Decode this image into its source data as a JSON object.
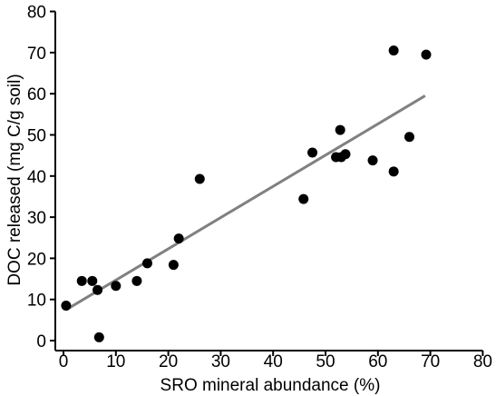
{
  "chart_data": {
    "type": "scatter",
    "xlabel": "SRO mineral abundance (%)",
    "ylabel": "DOC released (mg C/g soil)",
    "xlim": [
      -2,
      80
    ],
    "ylim": [
      -1,
      80
    ],
    "x_ticks": [
      0,
      10,
      20,
      30,
      40,
      50,
      60,
      70,
      80
    ],
    "y_ticks": [
      0,
      10,
      20,
      30,
      40,
      50,
      60,
      70,
      80
    ],
    "grid": false,
    "series": [
      {
        "points": [
          {
            "x": 0.5,
            "y": 8.5
          },
          {
            "x": 3.5,
            "y": 14.5
          },
          {
            "x": 5.5,
            "y": 14.5
          },
          {
            "x": 6.5,
            "y": 12.3
          },
          {
            "x": 6.8,
            "y": 0.8
          },
          {
            "x": 10.0,
            "y": 13.3
          },
          {
            "x": 14.0,
            "y": 14.5
          },
          {
            "x": 16.0,
            "y": 18.8
          },
          {
            "x": 21.0,
            "y": 18.4
          },
          {
            "x": 22.0,
            "y": 24.8
          },
          {
            "x": 26.0,
            "y": 39.3
          },
          {
            "x": 45.8,
            "y": 34.4
          },
          {
            "x": 47.5,
            "y": 45.7
          },
          {
            "x": 52.0,
            "y": 44.6
          },
          {
            "x": 52.8,
            "y": 51.2
          },
          {
            "x": 53.0,
            "y": 44.6
          },
          {
            "x": 53.8,
            "y": 45.3
          },
          {
            "x": 59.0,
            "y": 43.8
          },
          {
            "x": 63.0,
            "y": 70.5
          },
          {
            "x": 63.0,
            "y": 41.1
          },
          {
            "x": 66.0,
            "y": 49.5
          },
          {
            "x": 69.2,
            "y": 69.5
          }
        ]
      }
    ],
    "trendline": {
      "x": [
        0.5,
        69.0
      ],
      "y": [
        7.5,
        59.5
      ]
    },
    "colors": {
      "points": "#000000",
      "trendline": "#808080",
      "axes": "#000000"
    }
  }
}
